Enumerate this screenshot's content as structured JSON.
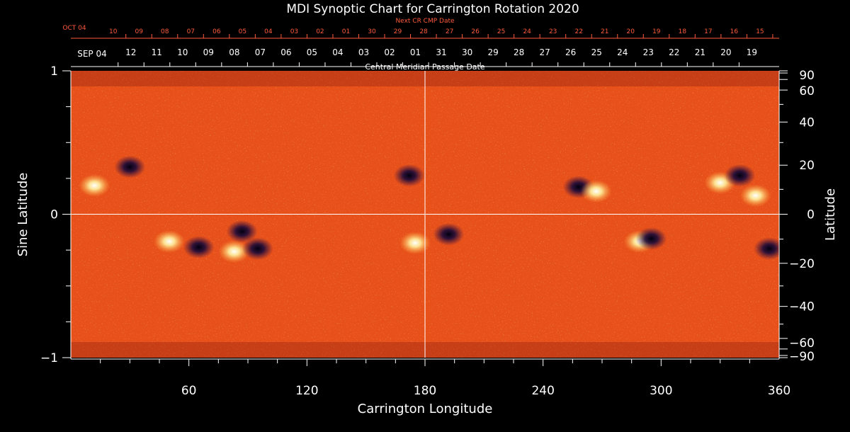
{
  "chart_data": {
    "type": "heatmap",
    "title": "MDI Synoptic Chart for Carrington Rotation 2020",
    "xlabel": "Carrington Longitude",
    "ylabel_left": "Sine Latitude",
    "ylabel_right": "Latitude",
    "top_axis_label": "Central Meridian Passage Date",
    "next_axis_label": "Next CR CMP Date",
    "xlim": [
      0,
      360
    ],
    "ylim": [
      -1,
      1
    ],
    "x_ticks": [
      60,
      120,
      180,
      240,
      300,
      360
    ],
    "x_tick_labels": [
      "60",
      "120",
      "180",
      "240",
      "300",
      "360"
    ],
    "y_ticks_left": [
      -1,
      0,
      1
    ],
    "y_tick_labels_left": [
      "−1",
      "0",
      "1"
    ],
    "y_ticks_right_deg": [
      90,
      60,
      40,
      20,
      0,
      -20,
      -40,
      -60,
      -90
    ],
    "y_tick_labels_right": [
      "90",
      "60",
      "40",
      "20",
      "0",
      "−20",
      "−40",
      "−60",
      "−90"
    ],
    "cmp_dates": {
      "first_label": "SEP 04",
      "labels": [
        "12",
        "11",
        "10",
        "09",
        "08",
        "07",
        "06",
        "05",
        "04",
        "03",
        "02",
        "01",
        "31",
        "30",
        "29",
        "28",
        "27",
        "26",
        "25",
        "24",
        "23",
        "22",
        "21",
        "20",
        "19"
      ],
      "lon_start": 30.5,
      "lon_step": 13.15
    },
    "next_cmp_dates": {
      "first_label": "OCT 04",
      "labels": [
        "10",
        "09",
        "08",
        "07",
        "06",
        "05",
        "04",
        "03",
        "02",
        "01",
        "30",
        "29",
        "28",
        "27",
        "26",
        "25",
        "24",
        "23",
        "22",
        "21",
        "20",
        "19",
        "18",
        "17",
        "16",
        "15"
      ],
      "lon_start": 21.5,
      "lon_step": 13.15
    },
    "grid_lines": {
      "longitude": 180,
      "sine_latitude": 0
    },
    "colors": {
      "background_field": "#e8501a",
      "positive_polarity": "#fff2a0",
      "negative_polarity": "#1a0a3a",
      "axis": "#ffffff",
      "next_axis": "#ff5a3c"
    },
    "active_regions": [
      {
        "lon": 12,
        "sinlat": 0.2,
        "polarity": "positive"
      },
      {
        "lon": 30,
        "sinlat": 0.33,
        "polarity": "negative"
      },
      {
        "lon": 50,
        "sinlat": -0.19,
        "polarity": "positive"
      },
      {
        "lon": 65,
        "sinlat": -0.23,
        "polarity": "negative"
      },
      {
        "lon": 83,
        "sinlat": -0.26,
        "polarity": "positive"
      },
      {
        "lon": 87,
        "sinlat": -0.12,
        "polarity": "negative"
      },
      {
        "lon": 95,
        "sinlat": -0.24,
        "polarity": "negative"
      },
      {
        "lon": 172,
        "sinlat": 0.27,
        "polarity": "negative"
      },
      {
        "lon": 175,
        "sinlat": -0.2,
        "polarity": "positive"
      },
      {
        "lon": 192,
        "sinlat": -0.14,
        "polarity": "negative"
      },
      {
        "lon": 258,
        "sinlat": 0.19,
        "polarity": "negative"
      },
      {
        "lon": 267,
        "sinlat": 0.16,
        "polarity": "positive"
      },
      {
        "lon": 289,
        "sinlat": -0.19,
        "polarity": "positive"
      },
      {
        "lon": 295,
        "sinlat": -0.17,
        "polarity": "negative"
      },
      {
        "lon": 330,
        "sinlat": 0.22,
        "polarity": "positive"
      },
      {
        "lon": 340,
        "sinlat": 0.27,
        "polarity": "negative"
      },
      {
        "lon": 348,
        "sinlat": 0.13,
        "polarity": "positive"
      },
      {
        "lon": 355,
        "sinlat": -0.24,
        "polarity": "negative"
      }
    ]
  }
}
